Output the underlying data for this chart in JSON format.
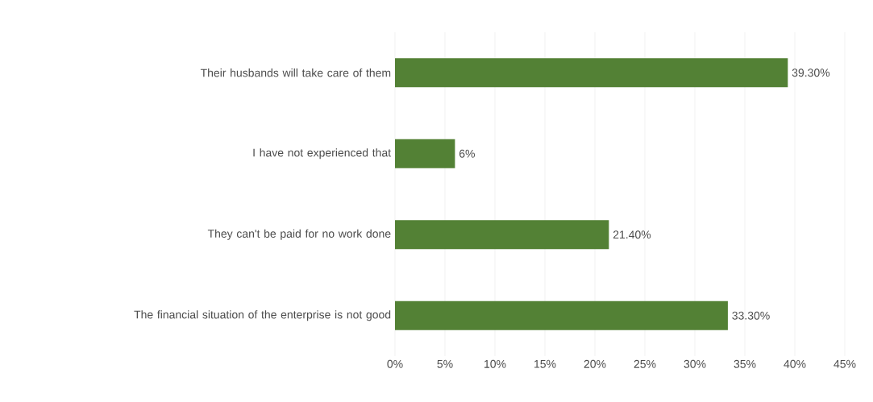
{
  "chart_data": {
    "type": "bar",
    "orientation": "horizontal",
    "categories": [
      "Their husbands will take care of them",
      "I have not experienced that",
      "They can't be paid for no work done",
      "The financial situation of the enterprise is not good"
    ],
    "values": [
      39.3,
      6,
      21.4,
      33.3
    ],
    "value_labels": [
      "39.30%",
      "6%",
      "21.40%",
      "33.30%"
    ],
    "color": "#538135",
    "xlim": [
      0,
      45
    ],
    "xticks": [
      {
        "value": 0,
        "label": "0%"
      },
      {
        "value": 5,
        "label": "5%"
      },
      {
        "value": 10,
        "label": "10%"
      },
      {
        "value": 15,
        "label": "15%"
      },
      {
        "value": 20,
        "label": "20%"
      },
      {
        "value": 25,
        "label": "25%"
      },
      {
        "value": 30,
        "label": "30%"
      },
      {
        "value": 35,
        "label": "35%"
      },
      {
        "value": 40,
        "label": "40%"
      },
      {
        "value": 45,
        "label": "45%"
      }
    ],
    "grid": "x"
  }
}
